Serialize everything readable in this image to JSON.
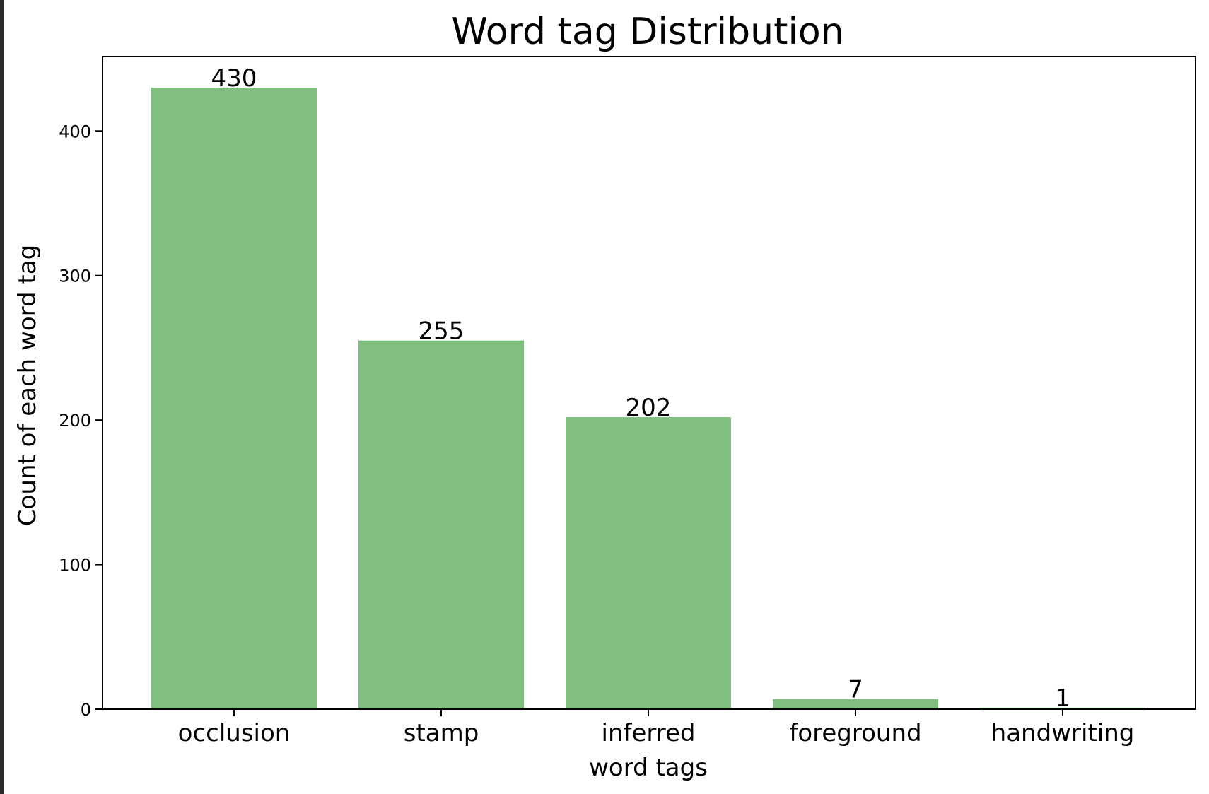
{
  "chart_data": {
    "type": "bar",
    "title": "Word tag Distribution",
    "xlabel": "word tags",
    "ylabel": "Count of each word tag",
    "categories": [
      "occlusion",
      "stamp",
      "inferred",
      "foreground",
      "handwriting"
    ],
    "values": [
      430,
      255,
      202,
      7,
      1
    ],
    "data_labels": [
      "430",
      "255",
      "202",
      "7",
      "1"
    ],
    "yticks": [
      0,
      100,
      200,
      300,
      400
    ],
    "ylim": [
      0,
      451.5
    ],
    "grid": false,
    "legend": "none",
    "bar_color": "#80bf80"
  }
}
